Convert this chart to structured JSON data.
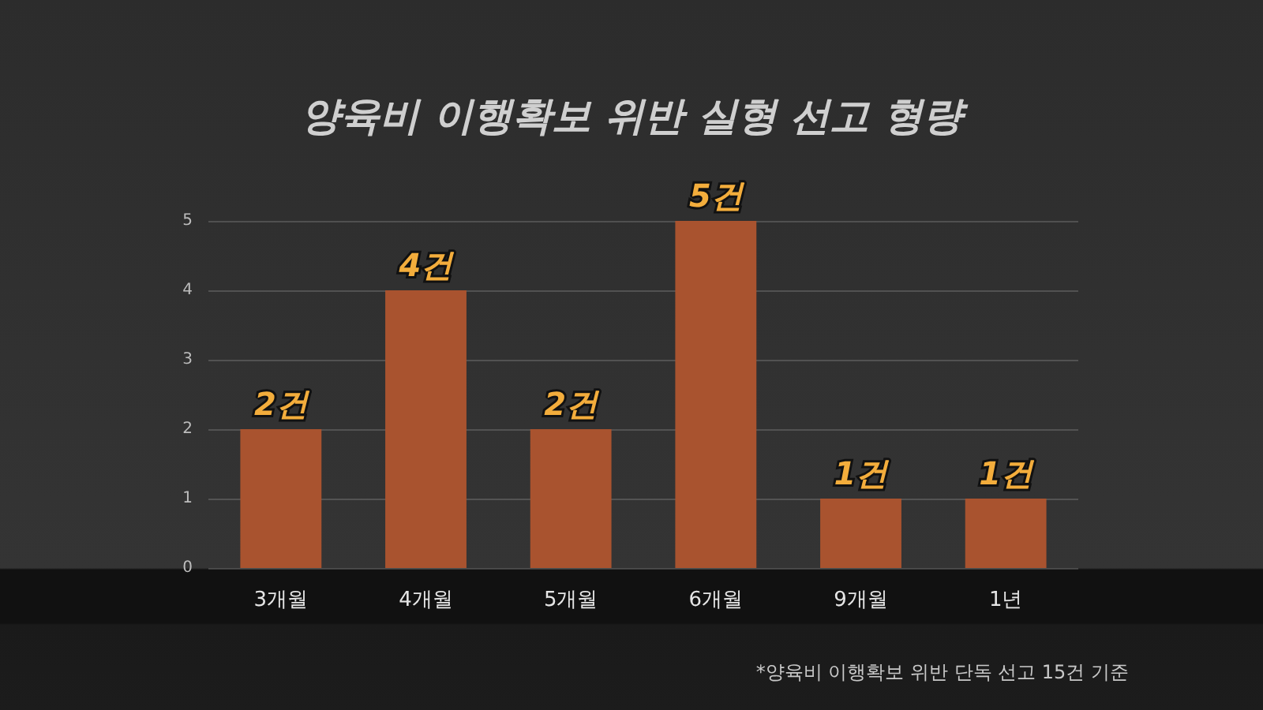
{
  "chart_data": {
    "type": "bar",
    "title": "양육비 이행확보 위반 실형 선고 형량",
    "categories": [
      "3개월",
      "4개월",
      "5개월",
      "6개월",
      "9개월",
      "1년"
    ],
    "values": [
      2,
      4,
      2,
      5,
      1,
      1
    ],
    "value_labels": [
      "2건",
      "4건",
      "2건",
      "5건",
      "1건",
      "1건"
    ],
    "color": "#a9532f",
    "ylim": [
      0,
      5
    ],
    "yticks": [
      0,
      1,
      2,
      3,
      4,
      5
    ],
    "grid": "y",
    "annotations": [
      "*양육비 이행확보 위반 단독 선고 15건 기준"
    ]
  }
}
